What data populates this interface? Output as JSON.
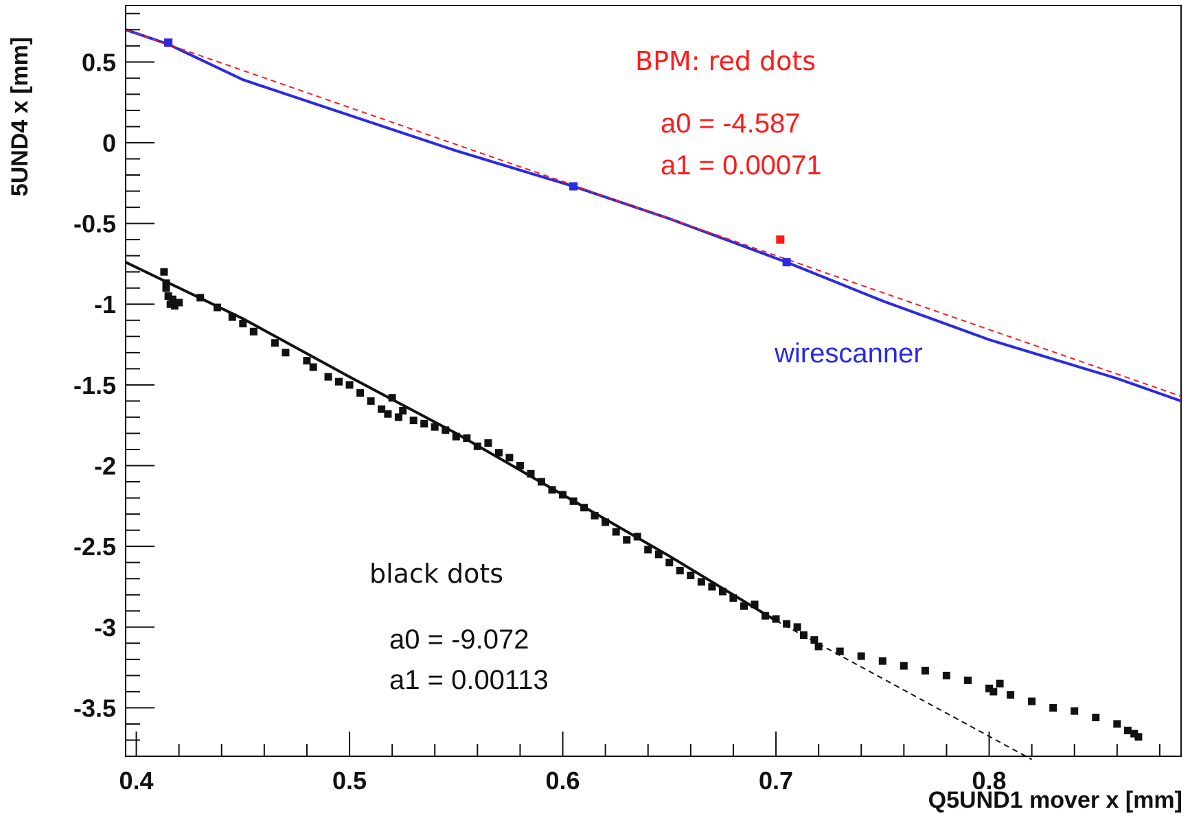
{
  "chart_data": {
    "type": "scatter",
    "title": "",
    "xlabel": "Q5UND1 mover x [mm]",
    "ylabel": "5UND4 x [mm]",
    "xlim": [
      0.395,
      0.89
    ],
    "ylim": [
      -3.8,
      0.85
    ],
    "x_ticks": [
      0.4,
      0.5,
      0.6,
      0.7,
      0.8
    ],
    "x_tick_labels": [
      "0.4",
      "0.5",
      "0.6",
      "0.7",
      "0.8"
    ],
    "y_ticks": [
      0.5,
      0,
      -0.5,
      -1,
      -1.5,
      -2,
      -2.5,
      -3,
      -3.5
    ],
    "y_tick_labels": [
      "0.5",
      "0",
      "-0.5",
      "-1",
      "-1.5",
      "-2",
      "-2.5",
      "-3",
      "-3.5"
    ],
    "grid": false,
    "colors": {
      "bpm": "#ff1a1a",
      "wirescanner": "#2a2ae6",
      "black": "#111111"
    },
    "series": [
      {
        "kind": "line",
        "color": "#2a2ae6",
        "x": [
          0.395,
          0.415,
          0.45,
          0.5,
          0.55,
          0.605,
          0.65,
          0.705,
          0.75,
          0.8,
          0.86,
          0.89
        ],
        "y": [
          0.7,
          0.61,
          0.39,
          0.17,
          -0.05,
          -0.27,
          -0.47,
          -0.74,
          -0.98,
          -1.22,
          -1.46,
          -1.6
        ]
      },
      {
        "kind": "line",
        "color": "#ff1a1a",
        "dash": true,
        "x": [
          0.395,
          0.89
        ],
        "y": [
          0.7,
          -1.57
        ]
      },
      {
        "kind": "points",
        "color": "#ff1a1a",
        "x": [
          0.415,
          0.605,
          0.702
        ],
        "y": [
          0.62,
          -0.27,
          -0.6
        ]
      },
      {
        "kind": "points",
        "color": "#2a2ae6",
        "x": [
          0.415,
          0.605,
          0.705
        ],
        "y": [
          0.62,
          -0.27,
          -0.74
        ]
      },
      {
        "kind": "line",
        "color": "#111111",
        "x": [
          0.395,
          0.45,
          0.5,
          0.55,
          0.6,
          0.65,
          0.7
        ],
        "y": [
          -0.74,
          -1.09,
          -1.45,
          -1.8,
          -2.18,
          -2.56,
          -2.96
        ]
      },
      {
        "kind": "line",
        "color": "#111111",
        "dash": true,
        "x": [
          0.7,
          0.82
        ],
        "y": [
          -2.96,
          -3.82
        ]
      },
      {
        "kind": "points",
        "color": "#111111",
        "x": [
          0.413,
          0.414,
          0.415,
          0.416,
          0.414,
          0.417,
          0.418,
          0.42,
          0.43,
          0.438,
          0.445,
          0.45,
          0.455,
          0.465,
          0.47,
          0.48,
          0.483,
          0.49,
          0.495,
          0.5,
          0.505,
          0.51,
          0.515,
          0.518,
          0.52,
          0.523,
          0.525,
          0.53,
          0.535,
          0.54,
          0.545,
          0.55,
          0.555,
          0.56,
          0.565,
          0.57,
          0.575,
          0.58,
          0.585,
          0.59,
          0.595,
          0.6,
          0.605,
          0.61,
          0.615,
          0.62,
          0.625,
          0.63,
          0.635,
          0.64,
          0.645,
          0.65,
          0.655,
          0.66,
          0.665,
          0.67,
          0.675,
          0.68,
          0.685,
          0.69,
          0.695,
          0.7,
          0.705,
          0.71,
          0.713,
          0.718,
          0.72,
          0.73,
          0.74,
          0.75,
          0.76,
          0.77,
          0.78,
          0.79,
          0.8,
          0.802,
          0.805,
          0.81,
          0.82,
          0.83,
          0.84,
          0.85,
          0.86,
          0.865,
          0.868,
          0.87
        ],
        "y": [
          -0.8,
          -0.87,
          -0.95,
          -1.0,
          -0.9,
          -0.97,
          -1.01,
          -0.99,
          -0.96,
          -1.02,
          -1.08,
          -1.12,
          -1.17,
          -1.24,
          -1.3,
          -1.35,
          -1.39,
          -1.45,
          -1.48,
          -1.5,
          -1.55,
          -1.6,
          -1.65,
          -1.68,
          -1.58,
          -1.7,
          -1.66,
          -1.72,
          -1.74,
          -1.76,
          -1.78,
          -1.82,
          -1.83,
          -1.88,
          -1.86,
          -1.92,
          -1.95,
          -2.0,
          -2.05,
          -2.1,
          -2.15,
          -2.18,
          -2.22,
          -2.26,
          -2.31,
          -2.35,
          -2.41,
          -2.46,
          -2.44,
          -2.52,
          -2.55,
          -2.6,
          -2.65,
          -2.68,
          -2.72,
          -2.75,
          -2.78,
          -2.82,
          -2.87,
          -2.86,
          -2.93,
          -2.95,
          -2.98,
          -3.0,
          -3.05,
          -3.08,
          -3.12,
          -3.15,
          -3.18,
          -3.21,
          -3.24,
          -3.27,
          -3.3,
          -3.33,
          -3.38,
          -3.4,
          -3.35,
          -3.42,
          -3.46,
          -3.5,
          -3.52,
          -3.56,
          -3.6,
          -3.64,
          -3.66,
          -3.68
        ]
      }
    ],
    "annotations": [
      {
        "text": "BPM: red dots",
        "color": "#ff1a1a"
      },
      {
        "text": "a0 = -4.587",
        "color": "#ff1a1a"
      },
      {
        "text": "a1 = 0.00071",
        "color": "#ff1a1a"
      },
      {
        "text": "wirescanner",
        "color": "#2a2ae6"
      },
      {
        "text": "black dots",
        "color": "#111111"
      },
      {
        "text": "a0 = -9.072",
        "color": "#111111"
      },
      {
        "text": "a1 = 0.00113",
        "color": "#111111"
      }
    ]
  }
}
